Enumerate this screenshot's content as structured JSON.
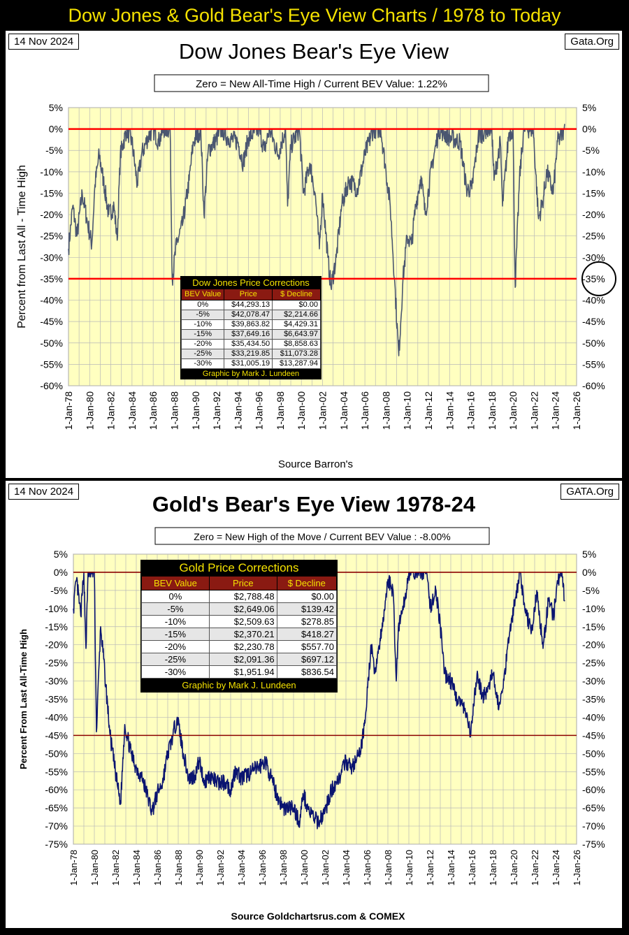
{
  "header": {
    "title": "Dow Jones & Gold Bear's Eye View Charts / 1978 to Today"
  },
  "colors": {
    "accent": "#f5e200",
    "plot_bg": "#ffffc0",
    "grid": "#b8b8b8",
    "dow_line": "#4a5670",
    "gold_line": "#0a1470",
    "ref_line_dow": "#ff0000",
    "ref_line_gold": "#8b0000",
    "table_header": "#8a1a12"
  },
  "chart_data": [
    {
      "type": "line",
      "date": "14 Nov 2024",
      "site": "Gata.Org",
      "title": "Dow Jones Bear's Eye View",
      "subtitle": "Zero = New All-Time High / Current BEV Value:  1.22%",
      "xlabel": "Source Barron's",
      "ylabel": "Percent from Last All - Time High",
      "x_ticks": [
        "1-Jan-78",
        "1-Jan-80",
        "1-Jan-82",
        "1-Jan-84",
        "1-Jan-86",
        "1-Jan-88",
        "1-Jan-90",
        "1-Jan-92",
        "1-Jan-94",
        "1-Jan-96",
        "1-Jan-98",
        "1-Jan-00",
        "1-Jan-02",
        "1-Jan-04",
        "1-Jan-06",
        "1-Jan-08",
        "1-Jan-10",
        "1-Jan-12",
        "1-Jan-14",
        "1-Jan-16",
        "1-Jan-18",
        "1-Jan-20",
        "1-Jan-22",
        "1-Jan-24",
        "1-Jan-26"
      ],
      "y_ticks": [
        "5%",
        "0%",
        "-5%",
        "-10%",
        "-15%",
        "-20%",
        "-25%",
        "-30%",
        "-35%",
        "-40%",
        "-45%",
        "-50%",
        "-55%",
        "-60%"
      ],
      "ylim": [
        -60,
        5
      ],
      "xlim": [
        1978,
        2026
      ],
      "grid": true,
      "reference_lines": [
        0,
        -35
      ],
      "circled_label": "-35%",
      "series": [
        {
          "values": [
            [
              1978.0,
              -28
            ],
            [
              1978.4,
              -18
            ],
            [
              1978.8,
              -25
            ],
            [
              1979.3,
              -15
            ],
            [
              1979.8,
              -22
            ],
            [
              1980.2,
              -27
            ],
            [
              1980.5,
              -13
            ],
            [
              1980.9,
              -6
            ],
            [
              1981.3,
              -12
            ],
            [
              1981.8,
              -20
            ],
            [
              1982.3,
              -18
            ],
            [
              1982.6,
              -26
            ],
            [
              1982.9,
              -6
            ],
            [
              1983.5,
              0
            ],
            [
              1984.0,
              -3
            ],
            [
              1984.5,
              -13
            ],
            [
              1984.9,
              -6
            ],
            [
              1985.5,
              -2
            ],
            [
              1986.0,
              0
            ],
            [
              1986.5,
              -3
            ],
            [
              1987.0,
              0
            ],
            [
              1987.6,
              0
            ],
            [
              1987.8,
              -35
            ],
            [
              1988.2,
              -27
            ],
            [
              1988.8,
              -22
            ],
            [
              1989.4,
              -12
            ],
            [
              1989.8,
              -3
            ],
            [
              1990.5,
              0
            ],
            [
              1990.8,
              -20
            ],
            [
              1991.2,
              -5
            ],
            [
              1991.8,
              -3
            ],
            [
              1992.5,
              0
            ],
            [
              1993.0,
              -2
            ],
            [
              1994.0,
              -3
            ],
            [
              1994.5,
              -8
            ],
            [
              1995.0,
              -2
            ],
            [
              1996.0,
              0
            ],
            [
              1996.5,
              -5
            ],
            [
              1997.0,
              0
            ],
            [
              1997.8,
              -6
            ],
            [
              1998.5,
              0
            ],
            [
              1998.7,
              -18
            ],
            [
              1999.0,
              -4
            ],
            [
              1999.8,
              0
            ],
            [
              2000.2,
              -15
            ],
            [
              2000.8,
              -8
            ],
            [
              2001.3,
              -15
            ],
            [
              2001.7,
              -28
            ],
            [
              2002.0,
              -15
            ],
            [
              2002.5,
              -30
            ],
            [
              2002.8,
              -37
            ],
            [
              2003.3,
              -30
            ],
            [
              2003.8,
              -18
            ],
            [
              2004.5,
              -12
            ],
            [
              2005.3,
              -14
            ],
            [
              2006.0,
              -6
            ],
            [
              2006.8,
              0
            ],
            [
              2007.5,
              0
            ],
            [
              2008.0,
              -10
            ],
            [
              2008.4,
              -18
            ],
            [
              2008.8,
              -35
            ],
            [
              2009.2,
              -53
            ],
            [
              2009.6,
              -35
            ],
            [
              2010.0,
              -25
            ],
            [
              2010.4,
              -27
            ],
            [
              2010.8,
              -18
            ],
            [
              2011.3,
              -11
            ],
            [
              2011.7,
              -20
            ],
            [
              2012.3,
              -9
            ],
            [
              2013.0,
              0
            ],
            [
              2014.0,
              -2
            ],
            [
              2015.0,
              -3
            ],
            [
              2015.6,
              -14
            ],
            [
              2016.1,
              -14
            ],
            [
              2016.7,
              -2
            ],
            [
              2017.5,
              0
            ],
            [
              2018.0,
              0
            ],
            [
              2018.2,
              -12
            ],
            [
              2018.8,
              -3
            ],
            [
              2019.0,
              -18
            ],
            [
              2019.6,
              -1
            ],
            [
              2020.0,
              0
            ],
            [
              2020.2,
              -37
            ],
            [
              2020.6,
              -12
            ],
            [
              2021.0,
              0
            ],
            [
              2021.9,
              0
            ],
            [
              2022.4,
              -21
            ],
            [
              2022.8,
              -17
            ],
            [
              2023.2,
              -10
            ],
            [
              2023.8,
              -15
            ],
            [
              2024.2,
              -3
            ],
            [
              2024.7,
              -1
            ],
            [
              2024.87,
              1.2
            ]
          ]
        }
      ],
      "corrections": {
        "title": "Dow Jones Price Corrections",
        "columns": [
          "BEV Value",
          "Price",
          "$ Decline"
        ],
        "rows": [
          [
            "0%",
            "$44,293.13",
            "$0.00"
          ],
          [
            "-5%",
            "$42,078.47",
            "$2,214.66"
          ],
          [
            "-10%",
            "$39,863.82",
            "$4,429.31"
          ],
          [
            "-15%",
            "$37,649.16",
            "$6,643.97"
          ],
          [
            "-20%",
            "$35,434.50",
            "$8,858.63"
          ],
          [
            "-25%",
            "$33,219.85",
            "$11,073.28"
          ],
          [
            "-30%",
            "$31,005.19",
            "$13,287.94"
          ]
        ],
        "footer": "Graphic by Mark J. Lundeen"
      }
    },
    {
      "type": "line",
      "date": "14 Nov 2024",
      "site": "GATA.Org",
      "title": "Gold's Bear's Eye View 1978-24",
      "subtitle": "Zero = New High of the Move / Current  BEV Value : -8.00%",
      "xlabel": "Source Goldchartsrus.com & COMEX",
      "ylabel": "Percent  From  Last  All-Time  High",
      "x_ticks": [
        "1-Jan-78",
        "1-Jan-80",
        "1-Jan-82",
        "1-Jan-84",
        "1-Jan-86",
        "1-Jan-88",
        "1-Jan-90",
        "1-Jan-92",
        "1-Jan-94",
        "1-Jan-96",
        "1-Jan-98",
        "1-Jan-00",
        "1-Jan-02",
        "1-Jan-04",
        "1-Jan-06",
        "1-Jan-08",
        "1-Jan-10",
        "1-Jan-12",
        "1-Jan-14",
        "1-Jan-16",
        "1-Jan-18",
        "1-Jan-20",
        "1-Jan-22",
        "1-Jan-24",
        "1-Jan-26"
      ],
      "y_ticks": [
        "5%",
        "0%",
        "-5%",
        "-10%",
        "-15%",
        "-20%",
        "-25%",
        "-30%",
        "-35%",
        "-40%",
        "-45%",
        "-50%",
        "-55%",
        "-60%",
        "-65%",
        "-70%",
        "-75%"
      ],
      "ylim": [
        -75,
        5
      ],
      "xlim": [
        1978,
        2026
      ],
      "grid": true,
      "reference_lines": [
        0,
        -45
      ],
      "series": [
        {
          "values": [
            [
              1978.0,
              -10
            ],
            [
              1978.3,
              -2
            ],
            [
              1978.7,
              -12
            ],
            [
              1979.0,
              0
            ],
            [
              1979.2,
              -21
            ],
            [
              1979.4,
              0
            ],
            [
              1980.0,
              0
            ],
            [
              1980.2,
              -44
            ],
            [
              1980.6,
              -15
            ],
            [
              1981.0,
              -28
            ],
            [
              1981.5,
              -45
            ],
            [
              1982.0,
              -55
            ],
            [
              1982.5,
              -64
            ],
            [
              1982.9,
              -42
            ],
            [
              1983.5,
              -50
            ],
            [
              1984.0,
              -54
            ],
            [
              1984.6,
              -57
            ],
            [
              1985.1,
              -62
            ],
            [
              1985.5,
              -66
            ],
            [
              1986.0,
              -61
            ],
            [
              1986.5,
              -58
            ],
            [
              1987.0,
              -50
            ],
            [
              1987.5,
              -45
            ],
            [
              1987.9,
              -40
            ],
            [
              1988.5,
              -50
            ],
            [
              1989.0,
              -57
            ],
            [
              1989.6,
              -56
            ],
            [
              1990.0,
              -52
            ],
            [
              1990.5,
              -58
            ],
            [
              1991.0,
              -56
            ],
            [
              1991.6,
              -58
            ],
            [
              1992.5,
              -58
            ],
            [
              1993.0,
              -60
            ],
            [
              1993.5,
              -54
            ],
            [
              1994.0,
              -57
            ],
            [
              1995.0,
              -55
            ],
            [
              1996.0,
              -53
            ],
            [
              1996.3,
              -52
            ],
            [
              1997.0,
              -58
            ],
            [
              1997.5,
              -62
            ],
            [
              1998.0,
              -65
            ],
            [
              1999.0,
              -65
            ],
            [
              1999.6,
              -69
            ],
            [
              1999.9,
              -61
            ],
            [
              2000.5,
              -66
            ],
            [
              2001.3,
              -69
            ],
            [
              2002.0,
              -66
            ],
            [
              2002.5,
              -61
            ],
            [
              2003.0,
              -58
            ],
            [
              2003.5,
              -56
            ],
            [
              2004.0,
              -52
            ],
            [
              2004.5,
              -54
            ],
            [
              2005.0,
              -52
            ],
            [
              2005.5,
              -48
            ],
            [
              2006.0,
              -35
            ],
            [
              2006.4,
              -20
            ],
            [
              2006.7,
              -28
            ],
            [
              2007.0,
              -23
            ],
            [
              2007.5,
              -15
            ],
            [
              2008.0,
              -2
            ],
            [
              2008.5,
              -5
            ],
            [
              2008.8,
              -30
            ],
            [
              2009.0,
              -15
            ],
            [
              2009.6,
              -8
            ],
            [
              2010.0,
              0
            ],
            [
              2011.0,
              0
            ],
            [
              2011.7,
              0
            ],
            [
              2012.0,
              -10
            ],
            [
              2012.6,
              -5
            ],
            [
              2013.0,
              -15
            ],
            [
              2013.4,
              -28
            ],
            [
              2014.0,
              -30
            ],
            [
              2014.6,
              -35
            ],
            [
              2015.0,
              -36
            ],
            [
              2015.5,
              -40
            ],
            [
              2015.9,
              -45
            ],
            [
              2016.5,
              -28
            ],
            [
              2017.0,
              -34
            ],
            [
              2017.5,
              -33
            ],
            [
              2018.0,
              -28
            ],
            [
              2018.6,
              -37
            ],
            [
              2019.0,
              -32
            ],
            [
              2019.5,
              -18
            ],
            [
              2020.0,
              -10
            ],
            [
              2020.6,
              0
            ],
            [
              2021.2,
              -12
            ],
            [
              2021.8,
              -16
            ],
            [
              2022.2,
              -5
            ],
            [
              2022.8,
              -21
            ],
            [
              2023.3,
              -8
            ],
            [
              2023.8,
              -12
            ],
            [
              2024.2,
              -3
            ],
            [
              2024.6,
              0
            ],
            [
              2024.87,
              -8
            ]
          ]
        }
      ],
      "corrections": {
        "title": "Gold Price Corrections",
        "columns": [
          "BEV Value",
          "Price",
          "$ Decline"
        ],
        "rows": [
          [
            "0%",
            "$2,788.48",
            "$0.00"
          ],
          [
            "-5%",
            "$2,649.06",
            "$139.42"
          ],
          [
            "-10%",
            "$2,509.63",
            "$278.85"
          ],
          [
            "-15%",
            "$2,370.21",
            "$418.27"
          ],
          [
            "-20%",
            "$2,230.78",
            "$557.70"
          ],
          [
            "-25%",
            "$2,091.36",
            "$697.12"
          ],
          [
            "-30%",
            "$1,951.94",
            "$836.54"
          ]
        ],
        "footer": "Graphic by Mark J. Lundeen"
      }
    }
  ]
}
